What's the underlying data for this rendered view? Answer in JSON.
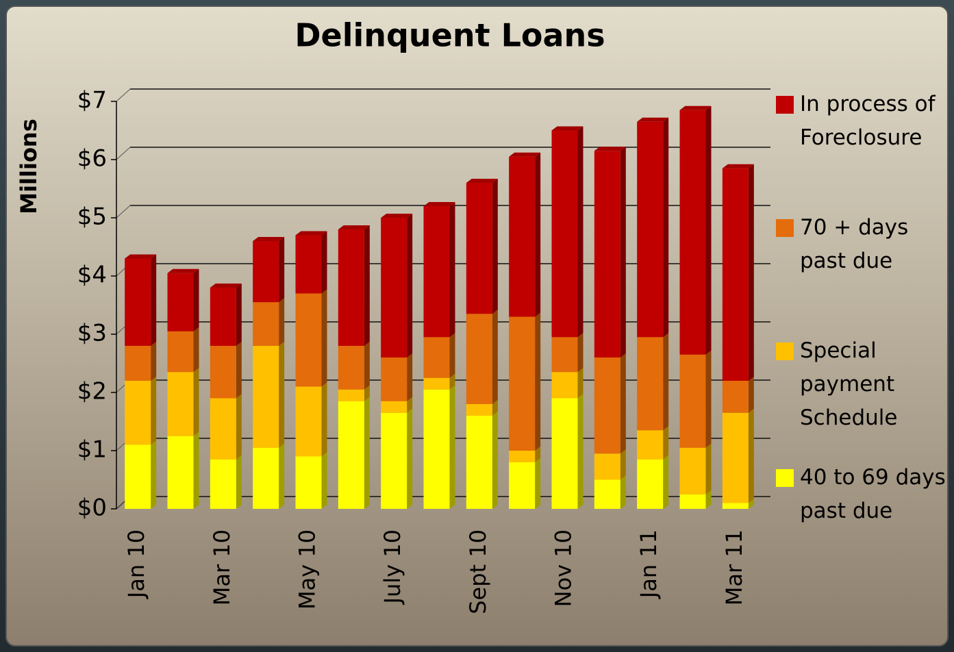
{
  "chart_data": {
    "type": "stacked_bar",
    "title": "Delinquent Loans",
    "y_axis_label": "Millions",
    "categories": [
      "Jan 10",
      null,
      "Mar 10",
      null,
      "May 10",
      null,
      "July 10",
      null,
      "Sept 10",
      null,
      "Nov 10",
      null,
      "Jan 11",
      null,
      "Mar 11"
    ],
    "series": [
      {
        "name": "40 to 69 days past due",
        "color": "#ffff00",
        "values": [
          1.1,
          1.25,
          0.85,
          1.05,
          0.9,
          1.85,
          1.65,
          2.05,
          1.6,
          0.8,
          1.9,
          0.5,
          0.85,
          0.25,
          0.1
        ]
      },
      {
        "name": "Special payment Schedule",
        "color": "#ffc000",
        "values": [
          1.1,
          1.1,
          1.05,
          1.75,
          1.2,
          0.2,
          0.2,
          0.2,
          0.2,
          0.2,
          0.45,
          0.45,
          0.5,
          0.8,
          1.55
        ]
      },
      {
        "name": "70 + days past due",
        "color": "#e46c0a",
        "values": [
          0.6,
          0.7,
          0.9,
          0.75,
          1.6,
          0.75,
          0.75,
          0.7,
          1.55,
          2.3,
          0.6,
          1.65,
          1.6,
          1.6,
          0.55
        ]
      },
      {
        "name": "In process of Foreclosure",
        "color": "#c00000",
        "values": [
          1.5,
          1.0,
          1.0,
          1.05,
          1.0,
          2.0,
          2.4,
          2.25,
          2.25,
          2.75,
          3.55,
          3.55,
          3.7,
          4.2,
          3.65
        ]
      }
    ],
    "ylim": [
      0,
      7
    ],
    "yticks": [
      {
        "value": 0,
        "label": "$0"
      },
      {
        "value": 1,
        "label": "$1"
      },
      {
        "value": 2,
        "label": "$2"
      },
      {
        "value": 3,
        "label": "$3"
      },
      {
        "value": 4,
        "label": "$4"
      },
      {
        "value": 5,
        "label": "$5"
      },
      {
        "value": 6,
        "label": "$6"
      },
      {
        "value": 7,
        "label": "$7"
      }
    ],
    "grid": true,
    "legend": "right"
  }
}
